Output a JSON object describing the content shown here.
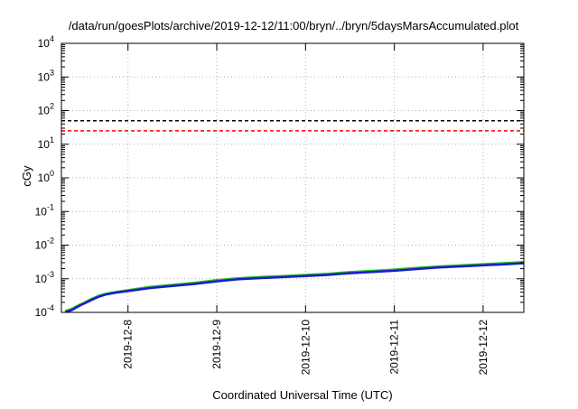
{
  "chart_data": {
    "type": "line",
    "title": "/data/run/goesPlots/archive/2019-12-12/11:00/bryn/../bryn/5daysMarsAccumulated.plot",
    "xlabel": "Coordinated Universal Time (UTC)",
    "ylabel": "cGy",
    "yscale": "log",
    "ylim": [
      0.0001,
      10000
    ],
    "xlim": [
      "2019-12-07T06:00",
      "2019-12-12T11:00"
    ],
    "yticks": [
      {
        "value": 0.0001,
        "base": "10",
        "exp": "-4"
      },
      {
        "value": 0.001,
        "base": "10",
        "exp": "-3"
      },
      {
        "value": 0.01,
        "base": "10",
        "exp": "-2"
      },
      {
        "value": 0.1,
        "base": "10",
        "exp": "-1"
      },
      {
        "value": 1,
        "base": "10",
        "exp": "0"
      },
      {
        "value": 10,
        "base": "10",
        "exp": "1"
      },
      {
        "value": 100,
        "base": "10",
        "exp": "2"
      },
      {
        "value": 1000,
        "base": "10",
        "exp": "3"
      },
      {
        "value": 10000,
        "base": "10",
        "exp": "4"
      }
    ],
    "xticks": [
      {
        "value": "2019-12-08T00:00",
        "label": "2019-12-8"
      },
      {
        "value": "2019-12-09T00:00",
        "label": "2019-12-9"
      },
      {
        "value": "2019-12-10T00:00",
        "label": "2019-12-10"
      },
      {
        "value": "2019-12-11T00:00",
        "label": "2019-12-11"
      },
      {
        "value": "2019-12-12T00:00",
        "label": "2019-12-12"
      }
    ],
    "grid": true,
    "reference_lines": [
      {
        "value": 50,
        "color": "#000000",
        "style": "dashed"
      },
      {
        "value": 25,
        "color": "#ff0000",
        "style": "dashed"
      }
    ],
    "series": [
      {
        "color": "#22bb22",
        "x": [
          "2019-12-07T07:00",
          "2019-12-07T09:00",
          "2019-12-07T10:00",
          "2019-12-07T11:00",
          "2019-12-07T12:00",
          "2019-12-07T14:00",
          "2019-12-07T16:00",
          "2019-12-07T18:00",
          "2019-12-07T21:00",
          "2019-12-08T00:00",
          "2019-12-08T06:00",
          "2019-12-08T12:00",
          "2019-12-08T18:00",
          "2019-12-09T00:00",
          "2019-12-09T06:00",
          "2019-12-09T12:00",
          "2019-12-09T18:00",
          "2019-12-10T00:00",
          "2019-12-10T06:00",
          "2019-12-10T12:00",
          "2019-12-10T18:00",
          "2019-12-11T00:00",
          "2019-12-11T06:00",
          "2019-12-11T12:00",
          "2019-12-11T18:00",
          "2019-12-12T00:00",
          "2019-12-12T06:00",
          "2019-12-12T11:00"
        ],
        "y": [
          0.00011,
          0.00013,
          0.00015,
          0.00017,
          0.00019,
          0.00025,
          0.00031,
          0.00036,
          0.00041,
          0.00046,
          0.00057,
          0.00066,
          0.00076,
          0.00091,
          0.00104,
          0.00113,
          0.00121,
          0.0013,
          0.00141,
          0.00158,
          0.00172,
          0.00187,
          0.0021,
          0.00233,
          0.00251,
          0.00271,
          0.00292,
          0.00313
        ]
      },
      {
        "color": "#1a1acc",
        "x": [
          "2019-12-07T07:00",
          "2019-12-07T09:00",
          "2019-12-07T10:00",
          "2019-12-07T11:00",
          "2019-12-07T12:00",
          "2019-12-07T14:00",
          "2019-12-07T16:00",
          "2019-12-07T18:00",
          "2019-12-07T21:00",
          "2019-12-08T00:00",
          "2019-12-08T06:00",
          "2019-12-08T12:00",
          "2019-12-08T18:00",
          "2019-12-09T00:00",
          "2019-12-09T06:00",
          "2019-12-09T12:00",
          "2019-12-09T18:00",
          "2019-12-10T00:00",
          "2019-12-10T06:00",
          "2019-12-10T12:00",
          "2019-12-10T18:00",
          "2019-12-11T00:00",
          "2019-12-11T06:00",
          "2019-12-11T12:00",
          "2019-12-11T18:00",
          "2019-12-12T00:00",
          "2019-12-12T06:00",
          "2019-12-12T11:00"
        ],
        "y": [
          0.0001,
          0.00012,
          0.00014,
          0.00016,
          0.00018,
          0.00023,
          0.00029,
          0.00034,
          0.00039,
          0.00043,
          0.00053,
          0.00061,
          0.0007,
          0.00084,
          0.00097,
          0.00105,
          0.00112,
          0.0012,
          0.0013,
          0.00146,
          0.00159,
          0.00173,
          0.00194,
          0.00216,
          0.00232,
          0.0025,
          0.0027,
          0.0029
        ]
      }
    ]
  }
}
